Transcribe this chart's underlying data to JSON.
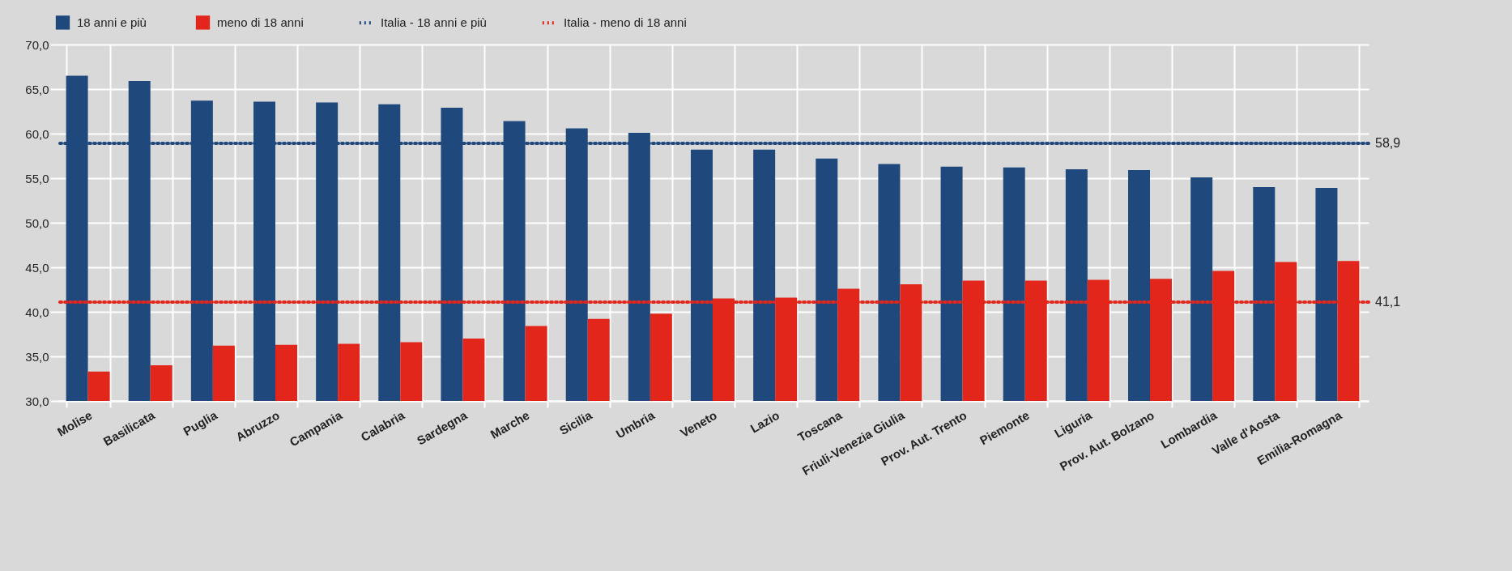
{
  "chart_data": {
    "type": "bar",
    "categories": [
      "Molise",
      "Basilicata",
      "Puglia",
      "Abruzzo",
      "Campania",
      "Calabria",
      "Sardegna",
      "Marche",
      "Sicilia",
      "Umbria",
      "Veneto",
      "Lazio",
      "Toscana",
      "Friuli-Venezia Giulia",
      "Prov. Aut. Trento",
      "Piemonte",
      "Liguria",
      "Prov. Aut. Bolzano",
      "Lombardia",
      "Valle d'Aosta",
      "Emilia-Romagna"
    ],
    "series": [
      {
        "name": "18 anni e più",
        "color": "#1f497d",
        "values": [
          66.5,
          65.9,
          63.7,
          63.6,
          63.5,
          63.3,
          62.9,
          61.4,
          60.6,
          60.1,
          58.2,
          58.2,
          57.2,
          56.6,
          56.3,
          56.2,
          56.0,
          55.9,
          55.1,
          54.0,
          53.9
        ]
      },
      {
        "name": "meno di 18 anni",
        "color": "#e3261b",
        "values": [
          33.3,
          34.0,
          36.2,
          36.3,
          36.4,
          36.6,
          37.0,
          38.4,
          39.2,
          39.8,
          41.5,
          41.6,
          42.6,
          43.1,
          43.5,
          43.5,
          43.6,
          43.7,
          44.6,
          45.6,
          45.7
        ]
      }
    ],
    "ref_lines": [
      {
        "axis": "y",
        "value": 58.9,
        "label": "Italia - 18 anni e più",
        "color": "#1f497d",
        "line_style": "dotted"
      },
      {
        "axis": "y",
        "value": 41.1,
        "label": "Italia - meno di 18 anni",
        "color": "#e3261b",
        "line_style": "dotted"
      }
    ],
    "annotations": [
      "58,9",
      "41,1"
    ],
    "ylim": [
      30,
      70
    ],
    "yticks": [
      {
        "value": 30,
        "label": "30,0"
      },
      {
        "value": 35,
        "label": "35,0"
      },
      {
        "value": 40,
        "label": "40,0"
      },
      {
        "value": 45,
        "label": "45,0"
      },
      {
        "value": 50,
        "label": "50,0"
      },
      {
        "value": 55,
        "label": "55,0"
      },
      {
        "value": 60,
        "label": "60,0"
      },
      {
        "value": 65,
        "label": "65,0"
      },
      {
        "value": 70,
        "label": "70,0"
      }
    ],
    "grid": true,
    "legend": "top"
  }
}
